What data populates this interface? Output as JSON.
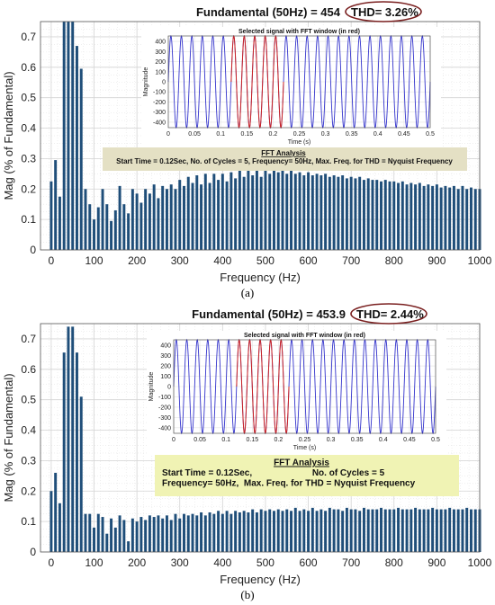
{
  "figure": {
    "caption_a": "(a)",
    "caption_b": "(b)"
  },
  "chart_data": [
    {
      "type": "bar",
      "title": "Fundamental (50Hz) = 454",
      "thd": "THD= 3.26%",
      "xlabel": "Frequency (Hz)",
      "ylabel": "Mag (% of Fundamental)",
      "xlim": [
        -25,
        1000
      ],
      "ylim": [
        0,
        0.75
      ],
      "xticks": [
        0,
        100,
        200,
        300,
        400,
        500,
        600,
        700,
        800,
        900,
        1000
      ],
      "yticks": [
        0,
        0.1,
        0.2,
        0.3,
        0.4,
        0.5,
        0.6,
        0.7
      ],
      "bar_color": "#1f4e79",
      "grid": true,
      "frequencies": [
        0,
        10,
        20,
        30,
        40,
        50,
        60,
        70,
        80,
        90,
        100,
        110,
        120,
        130,
        140,
        150,
        160,
        170,
        180,
        190,
        200,
        210,
        220,
        230,
        240,
        250,
        260,
        270,
        280,
        290,
        300,
        310,
        320,
        330,
        340,
        350,
        360,
        370,
        380,
        390,
        400,
        410,
        420,
        430,
        440,
        450,
        460,
        470,
        480,
        490,
        500,
        510,
        520,
        530,
        540,
        550,
        560,
        570,
        580,
        590,
        600,
        610,
        620,
        630,
        640,
        650,
        660,
        670,
        680,
        690,
        700,
        710,
        720,
        730,
        740,
        750,
        760,
        770,
        780,
        790,
        800,
        810,
        820,
        830,
        840,
        850,
        860,
        870,
        880,
        890,
        900,
        910,
        920,
        930,
        940,
        950,
        960,
        970,
        980,
        990,
        1000
      ],
      "values": [
        0.225,
        0.295,
        0.175,
        0.77,
        0.75,
        0.75,
        0.67,
        0.595,
        0.2,
        0.15,
        0.1,
        0.14,
        0.2,
        0.15,
        0.095,
        0.13,
        0.21,
        0.15,
        0.12,
        0.2,
        0.185,
        0.155,
        0.2,
        0.185,
        0.215,
        0.17,
        0.21,
        0.2,
        0.215,
        0.2,
        0.23,
        0.21,
        0.24,
        0.22,
        0.245,
        0.215,
        0.25,
        0.22,
        0.25,
        0.23,
        0.25,
        0.225,
        0.255,
        0.235,
        0.26,
        0.24,
        0.26,
        0.245,
        0.265,
        0.24,
        0.265,
        0.25,
        0.26,
        0.255,
        0.265,
        0.25,
        0.26,
        0.25,
        0.255,
        0.245,
        0.255,
        0.245,
        0.25,
        0.245,
        0.25,
        0.24,
        0.245,
        0.24,
        0.245,
        0.235,
        0.24,
        0.235,
        0.24,
        0.23,
        0.235,
        0.23,
        0.23,
        0.225,
        0.23,
        0.225,
        0.225,
        0.22,
        0.225,
        0.215,
        0.22,
        0.215,
        0.22,
        0.21,
        0.215,
        0.21,
        0.215,
        0.205,
        0.21,
        0.205,
        0.21,
        0.2,
        0.21,
        0.2,
        0.205,
        0.2,
        0.2
      ],
      "inset": {
        "title": "Selected signal with FFT window (in red)",
        "xlabel": "Time (s)",
        "ylabel": "Magnitude",
        "xlim": [
          0,
          0.5
        ],
        "ylim": [
          -454,
          454
        ],
        "xticks": [
          0,
          0.05,
          0.1,
          0.15,
          0.2,
          0.25,
          0.3,
          0.35,
          0.4,
          0.45,
          0.5
        ],
        "xticklabels": [
          "0",
          "0.05",
          "0.1",
          "0.15",
          "0.2",
          "0.25",
          "0.3",
          "0.35",
          "0.4",
          "0.45",
          "0.5"
        ],
        "yticks": [
          -400,
          -300,
          -200,
          -100,
          0,
          100,
          200,
          300,
          400
        ],
        "signal_frequency_hz": 50,
        "amplitude": 454,
        "window_s": [
          0.12,
          0.22
        ],
        "signal_color": "#3333cc",
        "window_color": "#cc2222"
      },
      "annotation": {
        "title": "FFT Analysis",
        "lines": [
          "Start Time = 0.12Sec, No. of Cycles = 5, Frequency= 50Hz, Max. Freq. for THD = Nyquist Frequency"
        ]
      }
    },
    {
      "type": "bar",
      "title": "Fundamental (50Hz) = 453.9",
      "thd": "THD= 2.44%",
      "xlabel": "Frequency (Hz)",
      "ylabel": "Mag (% of Fundamental)",
      "xlim": [
        -25,
        1000
      ],
      "ylim": [
        0,
        0.75
      ],
      "xticks": [
        0,
        100,
        200,
        300,
        400,
        500,
        600,
        700,
        800,
        900,
        1000
      ],
      "yticks": [
        0,
        0.1,
        0.2,
        0.3,
        0.4,
        0.5,
        0.6,
        0.7
      ],
      "bar_color": "#1f4e79",
      "grid": true,
      "frequencies": [
        0,
        10,
        20,
        30,
        40,
        50,
        60,
        70,
        80,
        90,
        100,
        110,
        120,
        130,
        140,
        150,
        160,
        170,
        180,
        190,
        200,
        210,
        220,
        230,
        240,
        250,
        260,
        270,
        280,
        290,
        300,
        310,
        320,
        330,
        340,
        350,
        360,
        370,
        380,
        390,
        400,
        410,
        420,
        430,
        440,
        450,
        460,
        470,
        480,
        490,
        500,
        510,
        520,
        530,
        540,
        550,
        560,
        570,
        580,
        590,
        600,
        610,
        620,
        630,
        640,
        650,
        660,
        670,
        680,
        690,
        700,
        710,
        720,
        730,
        740,
        750,
        760,
        770,
        780,
        790,
        800,
        810,
        820,
        830,
        840,
        850,
        860,
        870,
        880,
        890,
        900,
        910,
        920,
        930,
        940,
        950,
        960,
        970,
        980,
        990,
        1000
      ],
      "values": [
        0.2,
        0.26,
        0.16,
        0.655,
        0.74,
        0.74,
        0.655,
        0.51,
        0.125,
        0.125,
        0.08,
        0.125,
        0.115,
        0.06,
        0.11,
        0.08,
        0.12,
        0.105,
        0.035,
        0.11,
        0.1,
        0.115,
        0.105,
        0.12,
        0.115,
        0.12,
        0.11,
        0.12,
        0.105,
        0.125,
        0.11,
        0.125,
        0.12,
        0.125,
        0.12,
        0.13,
        0.12,
        0.13,
        0.125,
        0.135,
        0.125,
        0.135,
        0.125,
        0.135,
        0.13,
        0.135,
        0.13,
        0.14,
        0.13,
        0.14,
        0.135,
        0.14,
        0.135,
        0.14,
        0.135,
        0.14,
        0.135,
        0.145,
        0.135,
        0.14,
        0.135,
        0.145,
        0.135,
        0.14,
        0.135,
        0.145,
        0.14,
        0.14,
        0.135,
        0.145,
        0.14,
        0.14,
        0.135,
        0.145,
        0.14,
        0.14,
        0.14,
        0.145,
        0.14,
        0.14,
        0.14,
        0.145,
        0.14,
        0.14,
        0.14,
        0.145,
        0.14,
        0.14,
        0.14,
        0.145,
        0.14,
        0.14,
        0.14,
        0.145,
        0.14,
        0.14,
        0.14,
        0.145,
        0.14,
        0.14,
        0.14
      ],
      "inset": {
        "title": "Selected signal with FFT window (in red)",
        "xlabel": "Time (s)",
        "ylabel": "Magnitude",
        "xlim": [
          0,
          0.5
        ],
        "ylim": [
          -454,
          454
        ],
        "xticks": [
          0,
          0.05,
          0.1,
          0.15,
          0.2,
          0.25,
          0.3,
          0.35,
          0.4,
          0.45,
          0.5
        ],
        "xticklabels": [
          "0",
          "0.05",
          "0.1",
          "0.15",
          "0.2",
          "0.25",
          "0.3",
          "0.35",
          "0.4",
          "0.45",
          "0.5"
        ],
        "yticks": [
          -400,
          -300,
          -200,
          -100,
          0,
          100,
          200,
          300,
          400
        ],
        "signal_frequency_hz": 50,
        "amplitude": 454,
        "window_s": [
          0.12,
          0.22
        ],
        "signal_color": "#3333cc",
        "window_color": "#cc2222"
      },
      "annotation": {
        "title": "FFT Analysis",
        "lines": [
          "Start Time = 0.12Sec,                        No. of Cycles = 5",
          "Frequency= 50Hz,  Max. Freq. for THD = Nyquist Frequency"
        ]
      }
    }
  ]
}
